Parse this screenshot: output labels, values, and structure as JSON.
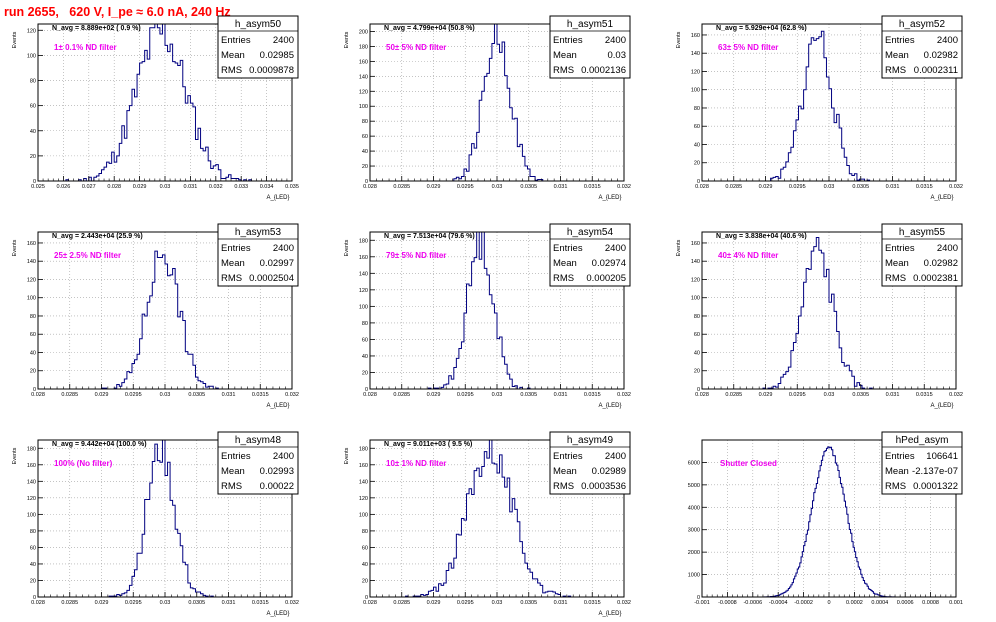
{
  "header": {
    "title": "run 2655,   620 V, I_pe ≈ 6.0 nA, 240 Hz"
  },
  "colors": {
    "title": "#ff0000",
    "histogram": "#000080",
    "filter_label": "#ee00ee",
    "grid": "#a0a0a0"
  },
  "chart_data": [
    {
      "type": "histogram",
      "name": "h_asym50",
      "ylabel": "Events",
      "xlabel": "A_{LED}",
      "n_avg": "N_avg = 8.889e+02 ( 0.9 %)",
      "filter": "1± 0.1% ND filter",
      "stats": {
        "entries": "2400",
        "mean": "0.02985",
        "rms": "0.0009878"
      },
      "xlim": [
        0.025,
        0.035
      ],
      "ylim": [
        0,
        125
      ],
      "xticks": [
        "0.025",
        "0.026",
        "0.027",
        "0.028",
        "0.029",
        "0.03",
        "0.031",
        "0.032",
        "0.033",
        "0.034",
        "0.035"
      ],
      "yticks": [
        0,
        20,
        40,
        60,
        80,
        100,
        120
      ],
      "mean_value": 0.02985,
      "sigma": 0.0009878,
      "peak": 118,
      "bins": 100,
      "seed": 11,
      "grid": true
    },
    {
      "type": "histogram",
      "name": "h_asym51",
      "ylabel": "Events",
      "xlabel": "A_{LED}",
      "n_avg": "N_avg = 4.799e+04 (50.8 %)",
      "filter": "50± 5% ND filter",
      "stats": {
        "entries": "2400",
        "mean": "0.03",
        "rms": "0.0002136"
      },
      "xlim": [
        0.028,
        0.032
      ],
      "ylim": [
        0,
        210
      ],
      "xticks": [
        "0.028",
        "0.0285",
        "0.029",
        "0.0295",
        "0.03",
        "0.0305",
        "0.031",
        "0.0315",
        "0.032"
      ],
      "yticks": [
        0,
        20,
        40,
        60,
        80,
        100,
        120,
        140,
        160,
        180,
        200
      ],
      "mean_value": 0.03,
      "sigma": 0.0002136,
      "peak": 195,
      "bins": 100,
      "seed": 22,
      "grid": true
    },
    {
      "type": "histogram",
      "name": "h_asym52",
      "ylabel": "Events",
      "xlabel": "A_{LED}",
      "n_avg": "N_avg = 5.929e+04 (62.8 %)",
      "filter": "63± 5% ND filter",
      "stats": {
        "entries": "2400",
        "mean": "0.02982",
        "rms": "0.0002311"
      },
      "xlim": [
        0.028,
        0.032
      ],
      "ylim": [
        0,
        172
      ],
      "xticks": [
        "0.028",
        "0.0285",
        "0.029",
        "0.0295",
        "0.03",
        "0.0305",
        "0.031",
        "0.0315",
        "0.032"
      ],
      "yticks": [
        0,
        20,
        40,
        60,
        80,
        100,
        120,
        140,
        160
      ],
      "mean_value": 0.02982,
      "sigma": 0.0002311,
      "peak": 160,
      "bins": 100,
      "seed": 33,
      "grid": true
    },
    {
      "type": "histogram",
      "name": "h_asym53",
      "ylabel": "Events",
      "xlabel": "A_{LED}",
      "n_avg": "N_avg = 2.443e+04 (25.9 %)",
      "filter": "25± 2.5% ND filter",
      "stats": {
        "entries": "2400",
        "mean": "0.02997",
        "rms": "0.0002504"
      },
      "xlim": [
        0.028,
        0.032
      ],
      "ylim": [
        0,
        172
      ],
      "xticks": [
        "0.028",
        "0.0285",
        "0.029",
        "0.0295",
        "0.03",
        "0.0305",
        "0.031",
        "0.0315",
        "0.032"
      ],
      "yticks": [
        0,
        20,
        40,
        60,
        80,
        100,
        120,
        140,
        160
      ],
      "mean_value": 0.02997,
      "sigma": 0.0002504,
      "peak": 152,
      "bins": 100,
      "seed": 44,
      "grid": true
    },
    {
      "type": "histogram",
      "name": "h_asym54",
      "ylabel": "Events",
      "xlabel": "A_{LED}",
      "n_avg": "N_avg = 7.513e+04 (79.6 %)",
      "filter": "79± 5% ND filter",
      "stats": {
        "entries": "2400",
        "mean": "0.02974",
        "rms": "0.000205"
      },
      "xlim": [
        0.028,
        0.032
      ],
      "ylim": [
        0,
        190
      ],
      "xticks": [
        "0.028",
        "0.0285",
        "0.029",
        "0.0295",
        "0.03",
        "0.0305",
        "0.031",
        "0.0315",
        "0.032"
      ],
      "yticks": [
        0,
        20,
        40,
        60,
        80,
        100,
        120,
        140,
        160,
        180
      ],
      "mean_value": 0.02974,
      "sigma": 0.000205,
      "peak": 178,
      "bins": 100,
      "seed": 55,
      "grid": true
    },
    {
      "type": "histogram",
      "name": "h_asym55",
      "ylabel": "Events",
      "xlabel": "A_{LED}",
      "n_avg": "N_avg = 3.838e+04 (40.6 %)",
      "filter": "40± 4% ND filter",
      "stats": {
        "entries": "2400",
        "mean": "0.02982",
        "rms": "0.0002381"
      },
      "xlim": [
        0.028,
        0.032
      ],
      "ylim": [
        0,
        172
      ],
      "xticks": [
        "0.028",
        "0.0285",
        "0.029",
        "0.0295",
        "0.03",
        "0.0305",
        "0.031",
        "0.0315",
        "0.032"
      ],
      "yticks": [
        0,
        20,
        40,
        60,
        80,
        100,
        120,
        140,
        160
      ],
      "mean_value": 0.02982,
      "sigma": 0.0002381,
      "peak": 152,
      "bins": 100,
      "seed": 66,
      "grid": true
    },
    {
      "type": "histogram",
      "name": "h_asym48",
      "ylabel": "Events",
      "xlabel": "A_{LED}",
      "n_avg": "N_avg = 9.442e+04 (100.0 %)",
      "filter": "100% (No filter)",
      "stats": {
        "entries": "2400",
        "mean": "0.02993",
        "rms": "0.00022"
      },
      "xlim": [
        0.028,
        0.032
      ],
      "ylim": [
        0,
        190
      ],
      "xticks": [
        "0.028",
        "0.0285",
        "0.029",
        "0.0295",
        "0.03",
        "0.0305",
        "0.031",
        "0.0315",
        "0.032"
      ],
      "yticks": [
        0,
        20,
        40,
        60,
        80,
        100,
        120,
        140,
        160,
        180
      ],
      "mean_value": 0.02993,
      "sigma": 0.00022,
      "peak": 178,
      "bins": 100,
      "seed": 77,
      "grid": true
    },
    {
      "type": "histogram",
      "name": "h_asym49",
      "ylabel": "Events",
      "xlabel": "A_{LED}",
      "n_avg": "N_avg = 9.011e+03 ( 9.5 %)",
      "filter": "10± 1% ND filter",
      "stats": {
        "entries": "2400",
        "mean": "0.02989",
        "rms": "0.0003536"
      },
      "xlim": [
        0.028,
        0.032
      ],
      "ylim": [
        0,
        190
      ],
      "xticks": [
        "0.028",
        "0.0285",
        "0.029",
        "0.0295",
        "0.03",
        "0.0305",
        "0.031",
        "0.0315",
        "0.032"
      ],
      "yticks": [
        0,
        20,
        40,
        60,
        80,
        100,
        120,
        140,
        160,
        180
      ],
      "mean_value": 0.02989,
      "sigma": 0.0003536,
      "peak": 180,
      "bins": 100,
      "seed": 88,
      "grid": true
    },
    {
      "type": "histogram",
      "name": "hPed_asym",
      "ylabel": "",
      "xlabel": "",
      "n_avg": "",
      "filter": "Shutter Closed",
      "stats": {
        "entries": "106641",
        "mean": "-2.137e-07",
        "rms": "0.0001322"
      },
      "xlim": [
        -0.001,
        0.001
      ],
      "ylim": [
        0,
        7000
      ],
      "xticks": [
        "-0.001",
        "-0.0008",
        "-0.0006",
        "-0.0004",
        "-0.0002",
        "0",
        "0.0002",
        "0.0004",
        "0.0006",
        "0.0008",
        "0.001"
      ],
      "yticks": [
        0,
        1000,
        2000,
        3000,
        4000,
        5000,
        6000
      ],
      "mean_value": -2.137e-07,
      "sigma": 0.0001322,
      "peak": 6650,
      "bins": 200,
      "seed": 99,
      "grid": true
    }
  ]
}
